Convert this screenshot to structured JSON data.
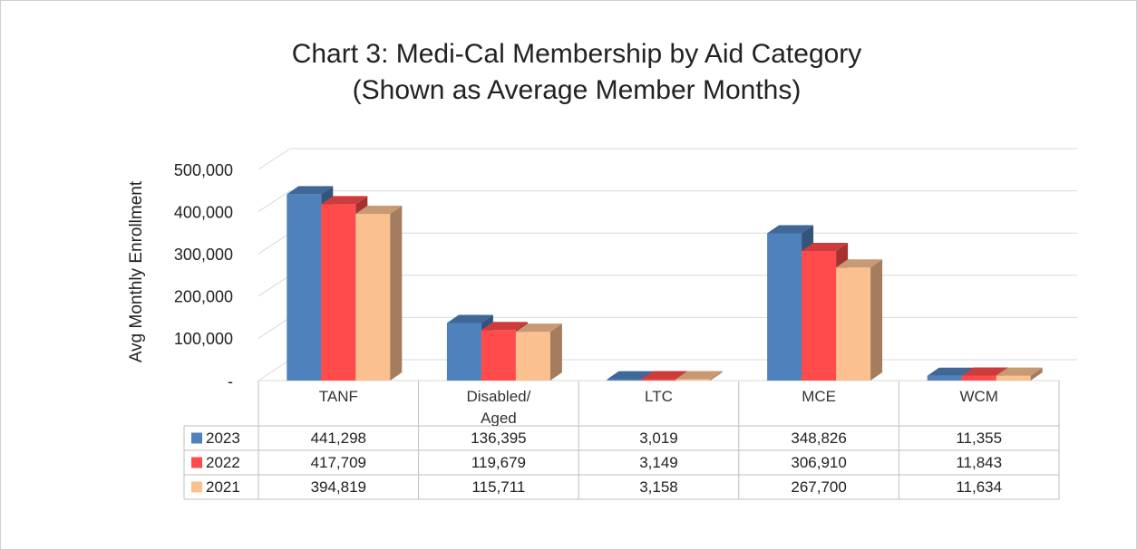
{
  "chart_data": {
    "type": "bar3d",
    "title": "Chart 3: Medi-Cal Membership by Aid Category",
    "subtitle": "(Shown as Average Member Months)",
    "y_label": "Avg Monthly Enrollment",
    "categories": [
      "TANF",
      "Disabled/ Aged",
      "LTC",
      "MCE",
      "WCM"
    ],
    "series": [
      {
        "name": "2023",
        "color": "#4f81bd",
        "values": [
          441298,
          136395,
          3019,
          348826,
          11355
        ],
        "value_labels": [
          "441,298",
          "136,395",
          "3,019",
          "348,826",
          "11,355"
        ]
      },
      {
        "name": "2022",
        "color": "#ff4b4b",
        "values": [
          417709,
          119679,
          3149,
          306910,
          11843
        ],
        "value_labels": [
          "417,709",
          "119,679",
          "3,149",
          "306,910",
          "11,843"
        ]
      },
      {
        "name": "2021",
        "color": "#fac090",
        "values": [
          394819,
          115711,
          3158,
          267700,
          11634
        ],
        "value_labels": [
          "394,819",
          "115,711",
          "3,158",
          "267,700",
          "11,634"
        ]
      }
    ],
    "ylim": [
      0,
      500000
    ],
    "yticks": [
      {
        "value": 0,
        "label": "-"
      },
      {
        "value": 100000,
        "label": "100,000"
      },
      {
        "value": 200000,
        "label": "200,000"
      },
      {
        "value": 300000,
        "label": "300,000"
      },
      {
        "value": 400000,
        "label": "400,000"
      },
      {
        "value": 500000,
        "label": "500,000"
      }
    ],
    "grid": true
  }
}
